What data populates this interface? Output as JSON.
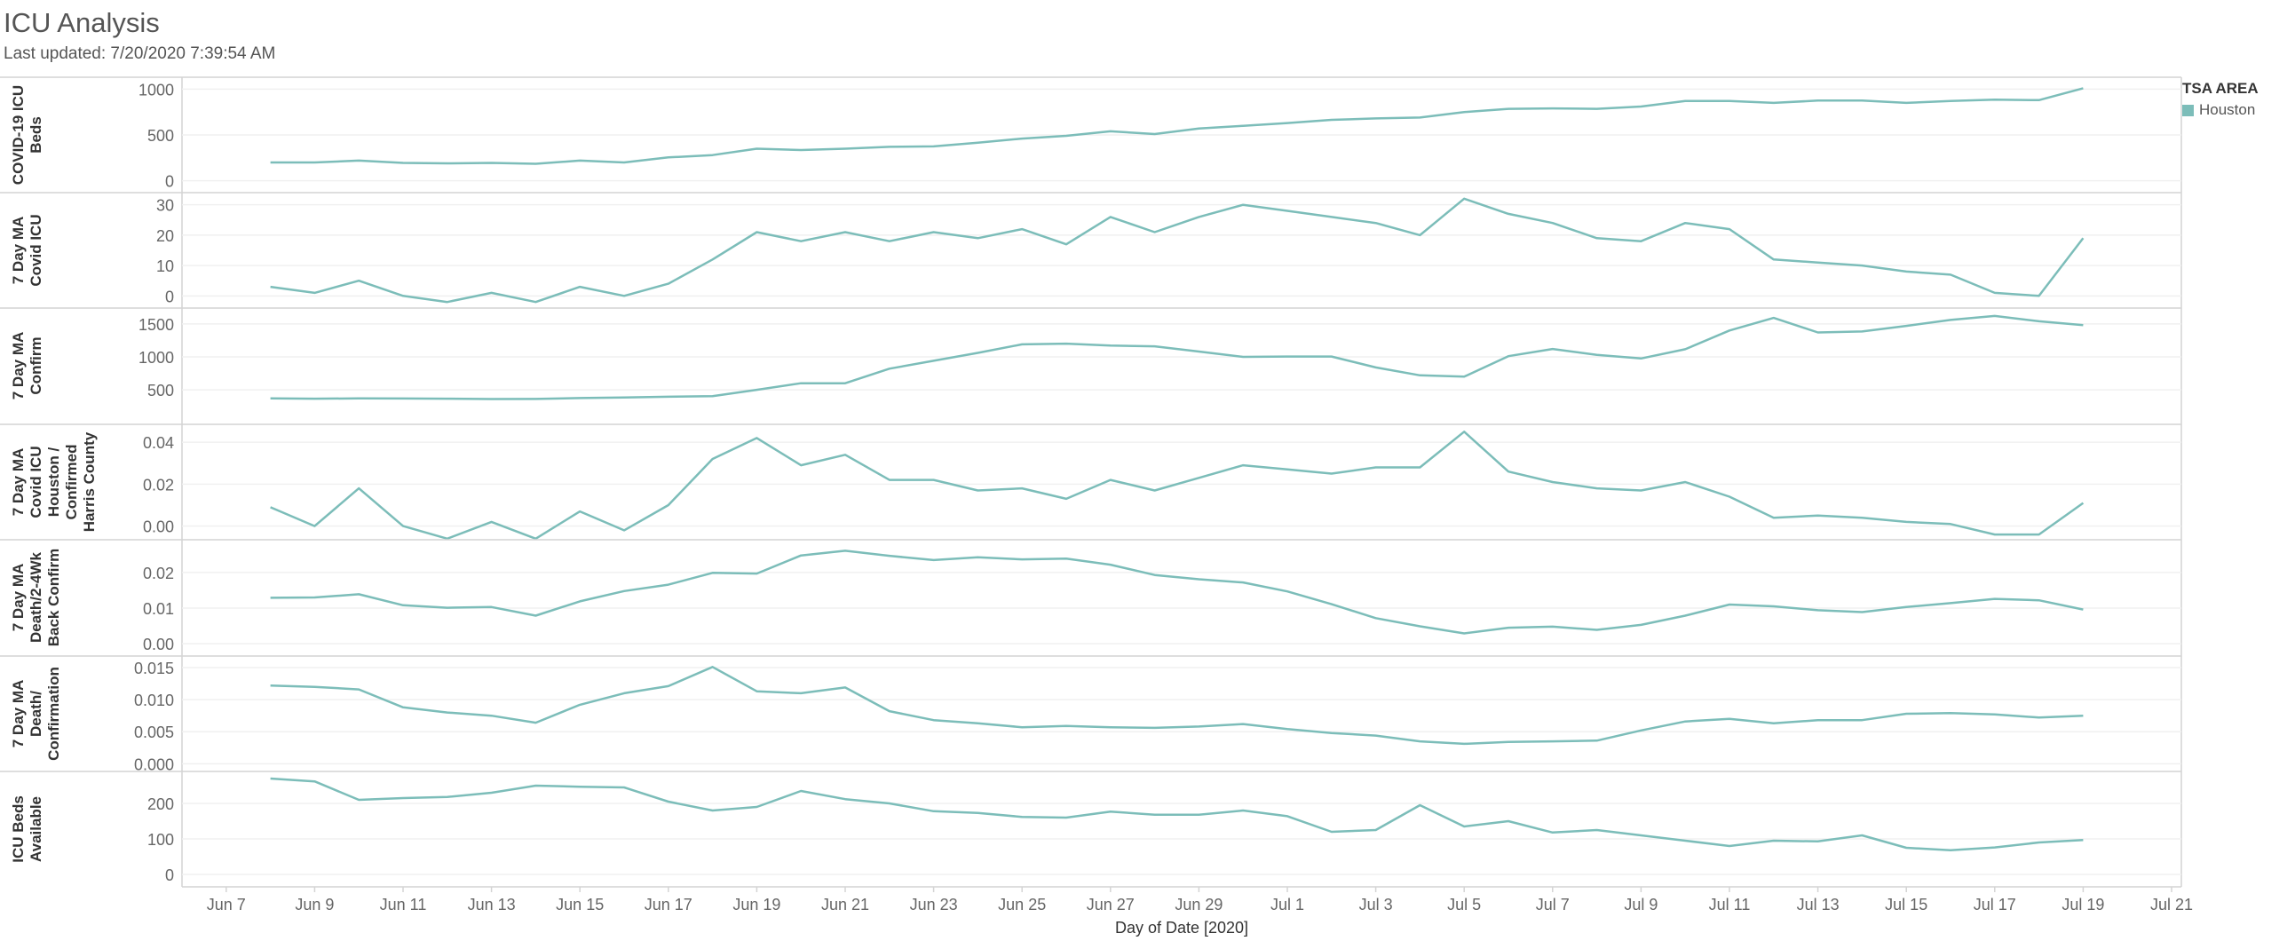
{
  "title": "ICU Analysis",
  "subtitle": "Last updated: 7/20/2020 7:39:54 AM",
  "legend": {
    "title": "TSA AREA",
    "item": "Houston",
    "color": "#7cbdb9"
  },
  "chart_data": {
    "type": "line",
    "xlabel": "Day of Date [2020]",
    "x_tick_labels": [
      "Jun 7",
      "Jun 9",
      "Jun 11",
      "Jun 13",
      "Jun 15",
      "Jun 17",
      "Jun 19",
      "Jun 21",
      "Jun 23",
      "Jun 25",
      "Jun 27",
      "Jun 29",
      "Jul 1",
      "Jul 3",
      "Jul 5",
      "Jul 7",
      "Jul 9",
      "Jul 11",
      "Jul 13",
      "Jul 15",
      "Jul 17",
      "Jul 19",
      "Jul 21"
    ],
    "x": [
      "Jun 8",
      "Jun 9",
      "Jun 10",
      "Jun 11",
      "Jun 12",
      "Jun 13",
      "Jun 14",
      "Jun 15",
      "Jun 16",
      "Jun 17",
      "Jun 18",
      "Jun 19",
      "Jun 20",
      "Jun 21",
      "Jun 22",
      "Jun 23",
      "Jun 24",
      "Jun 25",
      "Jun 26",
      "Jun 27",
      "Jun 28",
      "Jun 29",
      "Jun 30",
      "Jul 1",
      "Jul 2",
      "Jul 3",
      "Jul 4",
      "Jul 5",
      "Jul 6",
      "Jul 7",
      "Jul 8",
      "Jul 9",
      "Jul 10",
      "Jul 11",
      "Jul 12",
      "Jul 13",
      "Jul 14",
      "Jul 15",
      "Jul 16",
      "Jul 17",
      "Jul 18",
      "Jul 19"
    ],
    "series_color": "#7cbdb9",
    "panels": [
      {
        "ylabel": [
          "COVID-19 ICU",
          "Beds"
        ],
        "ylim": [
          -130,
          1130
        ],
        "ticks": [
          0,
          500,
          1000
        ],
        "tick_labels": [
          "0",
          "500",
          "1000"
        ],
        "values": [
          200,
          200,
          220,
          195,
          190,
          195,
          185,
          220,
          200,
          255,
          280,
          350,
          335,
          350,
          370,
          375,
          415,
          460,
          490,
          540,
          510,
          570,
          600,
          630,
          665,
          680,
          690,
          750,
          785,
          790,
          785,
          810,
          870,
          870,
          850,
          875,
          875,
          850,
          870,
          885,
          880,
          1010
        ]
      },
      {
        "ylabel": [
          "7 Day MA",
          "Covid ICU"
        ],
        "ylim": [
          -4,
          34
        ],
        "ticks": [
          0,
          10,
          20,
          30
        ],
        "tick_labels": [
          "0",
          "10",
          "20",
          "30"
        ],
        "values": [
          3,
          1,
          5,
          0,
          -2,
          1,
          -2,
          3,
          0,
          4,
          12,
          21,
          18,
          21,
          18,
          21,
          19,
          22,
          17,
          26,
          21,
          26,
          30,
          28,
          26,
          24,
          20,
          32,
          27,
          24,
          19,
          18,
          24,
          22,
          12,
          11,
          10,
          8,
          7,
          1,
          0,
          19
        ]
      },
      {
        "ylabel": [
          "7 Day MA",
          "Confirm"
        ],
        "ylim": [
          -10,
          1740
        ],
        "ticks": [
          500,
          1000,
          1500
        ],
        "tick_labels": [
          "500",
          "1000",
          "1500"
        ],
        "values": [
          370,
          365,
          370,
          368,
          365,
          360,
          362,
          375,
          385,
          395,
          405,
          500,
          600,
          600,
          820,
          940,
          1060,
          1190,
          1200,
          1170,
          1160,
          1080,
          1000,
          1005,
          1005,
          840,
          720,
          700,
          1010,
          1120,
          1030,
          975,
          1115,
          1400,
          1590,
          1370,
          1385,
          1470,
          1560,
          1620,
          1540,
          1480
        ]
      },
      {
        "ylabel": [
          "7 Day MA",
          "Covid ICU",
          "Houston /",
          "Confirmed",
          "Harris County"
        ],
        "ylim": [
          -0.0065,
          0.0485
        ],
        "ticks": [
          0.0,
          0.02,
          0.04
        ],
        "tick_labels": [
          "0.00",
          "0.02",
          "0.04"
        ],
        "values": [
          0.009,
          0.0,
          0.018,
          0.0,
          -0.006,
          0.002,
          -0.006,
          0.007,
          -0.002,
          0.01,
          0.032,
          0.042,
          0.029,
          0.034,
          0.022,
          0.022,
          0.017,
          0.018,
          0.013,
          0.022,
          0.017,
          0.023,
          0.029,
          0.027,
          0.025,
          0.028,
          0.028,
          0.045,
          0.026,
          0.021,
          0.018,
          0.017,
          0.021,
          0.014,
          0.004,
          0.005,
          0.004,
          0.002,
          0.001,
          -0.004,
          -0.004,
          0.011
        ]
      },
      {
        "ylabel": [
          "7 Day MA",
          "Death/2-4Wk",
          "Back Confirm"
        ],
        "ylim": [
          -0.0032,
          0.0292
        ],
        "ticks": [
          0.0,
          0.01,
          0.02
        ],
        "tick_labels": [
          "0.00",
          "0.01",
          "0.02"
        ],
        "values": [
          0.0129,
          0.013,
          0.0139,
          0.0108,
          0.0101,
          0.0103,
          0.0079,
          0.0119,
          0.0148,
          0.0166,
          0.0199,
          0.0197,
          0.0248,
          0.0261,
          0.0247,
          0.0235,
          0.0243,
          0.0237,
          0.0239,
          0.0222,
          0.0193,
          0.0181,
          0.0172,
          0.0147,
          0.0111,
          0.0072,
          0.0049,
          0.0029,
          0.0045,
          0.0048,
          0.0039,
          0.0053,
          0.0079,
          0.011,
          0.0105,
          0.0094,
          0.0089,
          0.0103,
          0.0114,
          0.0126,
          0.0122,
          0.0096
        ]
      },
      {
        "ylabel": [
          "7 Day MA",
          "Death/",
          "Confirmation"
        ],
        "ylim": [
          -0.0012,
          0.0168
        ],
        "ticks": [
          0.0,
          0.005,
          0.01,
          0.015
        ],
        "tick_labels": [
          "0.000",
          "0.005",
          "0.010",
          "0.015"
        ],
        "values": [
          0.0122,
          0.012,
          0.0116,
          0.0088,
          0.008,
          0.0075,
          0.0064,
          0.0092,
          0.011,
          0.0121,
          0.0151,
          0.0113,
          0.011,
          0.0119,
          0.0082,
          0.0068,
          0.0063,
          0.0057,
          0.0059,
          0.0057,
          0.0056,
          0.0058,
          0.0062,
          0.0054,
          0.0048,
          0.0044,
          0.0035,
          0.0031,
          0.0034,
          0.0035,
          0.0036,
          0.0052,
          0.0066,
          0.007,
          0.0063,
          0.0068,
          0.0068,
          0.0078,
          0.0079,
          0.0077,
          0.0072,
          0.0075
        ]
      },
      {
        "ylabel": [
          "ICU Beds",
          "Available"
        ],
        "ylim": [
          -35,
          290
        ],
        "ticks": [
          0,
          100,
          200
        ],
        "tick_labels": [
          "0",
          "100",
          "200"
        ],
        "values": [
          270,
          262,
          210,
          215,
          218,
          230,
          250,
          247,
          245,
          205,
          180,
          190,
          235,
          212,
          200,
          178,
          173,
          162,
          160,
          177,
          168,
          168,
          180,
          164,
          120,
          125,
          195,
          135,
          150,
          118,
          125,
          110,
          95,
          80,
          95,
          93,
          110,
          75,
          68,
          76,
          90,
          97
        ]
      }
    ]
  }
}
